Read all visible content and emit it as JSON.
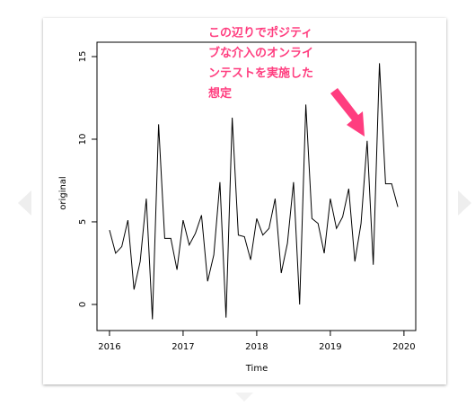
{
  "chart_data": {
    "type": "line",
    "xlabel": "Time",
    "ylabel": "original",
    "x": [
      2016,
      2016.083,
      2016.167,
      2016.25,
      2016.333,
      2016.417,
      2016.5,
      2016.583,
      2016.667,
      2016.75,
      2016.833,
      2016.917,
      2017,
      2017.083,
      2017.167,
      2017.25,
      2017.333,
      2017.417,
      2017.5,
      2017.583,
      2017.667,
      2017.75,
      2017.833,
      2017.917,
      2018,
      2018.083,
      2018.167,
      2018.25,
      2018.333,
      2018.417,
      2018.5,
      2018.583,
      2018.667,
      2018.75,
      2018.833,
      2018.917,
      2019,
      2019.083,
      2019.167,
      2019.25,
      2019.333,
      2019.417,
      2019.5,
      2019.583,
      2019.667,
      2019.75,
      2019.833,
      2019.917
    ],
    "values": [
      4.5,
      3.1,
      3.5,
      5.1,
      0.9,
      2.6,
      6.4,
      -0.9,
      10.9,
      4.0,
      4.0,
      2.1,
      5.1,
      3.6,
      4.3,
      5.4,
      1.4,
      3.0,
      7.4,
      -0.8,
      11.3,
      4.2,
      4.1,
      2.7,
      5.2,
      4.2,
      4.6,
      6.4,
      1.9,
      3.7,
      7.4,
      0.0,
      12.1,
      5.2,
      4.9,
      3.1,
      6.4,
      4.6,
      5.3,
      7.0,
      2.6,
      4.9,
      9.9,
      2.4,
      14.6,
      7.3,
      7.3,
      5.9
    ],
    "color": "#000000",
    "xlim": [
      2015.83,
      2020.16
    ],
    "xticks": [
      2016,
      2017,
      2018,
      2019,
      2020
    ],
    "ylim": [
      -1.58,
      15.87
    ],
    "yticks": [
      0,
      5,
      10,
      15
    ],
    "annotation": [
      "この辺りでポジティ",
      "ブな介入のオンライ",
      "ンテストを実施した",
      "想定"
    ],
    "annotation_color": "#ff3d7f"
  }
}
